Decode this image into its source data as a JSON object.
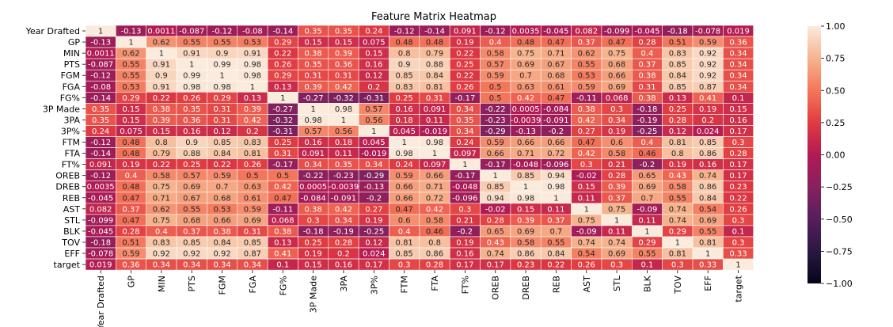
{
  "chart_data": {
    "type": "heatmap",
    "title": "Feature Matrix Heatmap",
    "xlabel": "",
    "ylabel": "",
    "labels": [
      "Year Drafted",
      "GP",
      "MIN",
      "PTS",
      "FGM",
      "FGA",
      "FG%",
      "3P Made",
      "3PA",
      "3P%",
      "FTM",
      "FTA",
      "FT%",
      "OREB",
      "DREB",
      "REB",
      "AST",
      "STL",
      "BLK",
      "TOV",
      "EFF",
      "target"
    ],
    "value_labels": [
      [
        "1",
        "-0.13",
        "0.0011",
        "-0.087",
        "-0.12",
        "-0.08",
        "-0.14",
        "0.35",
        "0.35",
        "0.24",
        "-0.12",
        "-0.14",
        "0.091",
        "-0.12",
        "0.0035",
        "-0.045",
        "0.082",
        "-0.099",
        "-0.045",
        "-0.18",
        "-0.078",
        "0.019"
      ],
      [
        "-0.13",
        "1",
        "0.62",
        "0.55",
        "0.55",
        "0.53",
        "0.29",
        "0.15",
        "0.15",
        "0.075",
        "0.48",
        "0.48",
        "0.19",
        "0.4",
        "0.48",
        "0.47",
        "0.37",
        "0.47",
        "0.28",
        "0.51",
        "0.59",
        "0.36"
      ],
      [
        "0.0011",
        "0.62",
        "1",
        "0.91",
        "0.9",
        "0.91",
        "0.22",
        "0.38",
        "0.39",
        "0.15",
        "0.8",
        "0.79",
        "0.22",
        "0.58",
        "0.75",
        "0.71",
        "0.62",
        "0.75",
        "0.4",
        "0.83",
        "0.92",
        "0.34"
      ],
      [
        "-0.087",
        "0.55",
        "0.91",
        "1",
        "0.99",
        "0.98",
        "0.26",
        "0.35",
        "0.36",
        "0.16",
        "0.9",
        "0.88",
        "0.25",
        "0.57",
        "0.69",
        "0.67",
        "0.55",
        "0.68",
        "0.37",
        "0.85",
        "0.92",
        "0.34"
      ],
      [
        "-0.12",
        "0.55",
        "0.9",
        "0.99",
        "1",
        "0.98",
        "0.29",
        "0.31",
        "0.31",
        "0.12",
        "0.85",
        "0.84",
        "0.22",
        "0.59",
        "0.7",
        "0.68",
        "0.53",
        "0.66",
        "0.38",
        "0.84",
        "0.92",
        "0.34"
      ],
      [
        "-0.08",
        "0.53",
        "0.91",
        "0.98",
        "0.98",
        "1",
        "0.13",
        "0.39",
        "0.42",
        "0.2",
        "0.83",
        "0.81",
        "0.26",
        "0.5",
        "0.63",
        "0.61",
        "0.59",
        "0.69",
        "0.31",
        "0.85",
        "0.87",
        "0.34"
      ],
      [
        "-0.14",
        "0.29",
        "0.22",
        "0.26",
        "0.29",
        "0.13",
        "1",
        "-0.27",
        "-0.32",
        "-0.31",
        "0.25",
        "0.31",
        "-0.17",
        "0.5",
        "0.42",
        "0.47",
        "-0.11",
        "0.068",
        "0.38",
        "0.13",
        "0.41",
        "0.1"
      ],
      [
        "0.35",
        "0.15",
        "0.38",
        "0.35",
        "0.31",
        "0.39",
        "-0.27",
        "1",
        "0.98",
        "0.57",
        "0.16",
        "0.091",
        "0.34",
        "-0.22",
        "0.0005",
        "-0.084",
        "0.38",
        "0.3",
        "-0.18",
        "0.25",
        "0.19",
        "0.15"
      ],
      [
        "0.35",
        "0.15",
        "0.39",
        "0.36",
        "0.31",
        "0.42",
        "-0.32",
        "0.98",
        "1",
        "0.56",
        "0.18",
        "0.11",
        "0.35",
        "-0.23",
        "-0.0039",
        "-0.091",
        "0.42",
        "0.34",
        "-0.19",
        "0.28",
        "0.2",
        "0.16"
      ],
      [
        "0.24",
        "0.075",
        "0.15",
        "0.16",
        "0.12",
        "0.2",
        "-0.31",
        "0.57",
        "0.56",
        "1",
        "0.045",
        "-0.019",
        "0.34",
        "-0.29",
        "-0.13",
        "-0.2",
        "0.27",
        "0.19",
        "-0.25",
        "0.12",
        "0.024",
        "0.17"
      ],
      [
        "-0.12",
        "0.48",
        "0.8",
        "0.9",
        "0.85",
        "0.83",
        "0.25",
        "0.16",
        "0.18",
        "0.045",
        "1",
        "0.98",
        "0.24",
        "0.59",
        "0.66",
        "0.66",
        "0.47",
        "0.6",
        "0.4",
        "0.81",
        "0.85",
        "0.3"
      ],
      [
        "-0.14",
        "0.48",
        "0.79",
        "0.88",
        "0.84",
        "0.81",
        "0.31",
        "0.091",
        "0.11",
        "-0.019",
        "0.98",
        "1",
        "0.097",
        "0.66",
        "0.71",
        "0.72",
        "0.42",
        "0.58",
        "0.46",
        "0.8",
        "0.86",
        "0.28"
      ],
      [
        "0.091",
        "0.19",
        "0.22",
        "0.25",
        "0.22",
        "0.26",
        "-0.17",
        "0.34",
        "0.35",
        "0.34",
        "0.24",
        "0.097",
        "1",
        "-0.17",
        "-0.048",
        "-0.096",
        "0.3",
        "0.21",
        "-0.2",
        "0.19",
        "0.16",
        "0.17"
      ],
      [
        "-0.12",
        "0.4",
        "0.58",
        "0.57",
        "0.59",
        "0.5",
        "0.5",
        "-0.22",
        "-0.23",
        "-0.29",
        "0.59",
        "0.66",
        "-0.17",
        "1",
        "0.85",
        "0.94",
        "-0.02",
        "0.28",
        "0.65",
        "0.43",
        "0.74",
        "0.17"
      ],
      [
        "0.0035",
        "0.48",
        "0.75",
        "0.69",
        "0.7",
        "0.63",
        "0.42",
        "0.0005",
        "-0.0039",
        "-0.13",
        "0.66",
        "0.71",
        "-0.048",
        "0.85",
        "1",
        "0.98",
        "0.15",
        "0.39",
        "0.69",
        "0.58",
        "0.86",
        "0.23"
      ],
      [
        "-0.045",
        "0.47",
        "0.71",
        "0.67",
        "0.68",
        "0.61",
        "0.47",
        "-0.084",
        "-0.091",
        "-0.2",
        "0.66",
        "0.72",
        "-0.096",
        "0.94",
        "0.98",
        "1",
        "0.11",
        "0.37",
        "0.7",
        "0.55",
        "0.84",
        "0.22"
      ],
      [
        "0.082",
        "0.37",
        "0.62",
        "0.55",
        "0.53",
        "0.59",
        "-0.11",
        "0.38",
        "0.42",
        "0.27",
        "0.47",
        "0.42",
        "0.3",
        "-0.02",
        "0.15",
        "0.11",
        "1",
        "0.75",
        "-0.09",
        "0.74",
        "0.54",
        "0.26"
      ],
      [
        "-0.099",
        "0.47",
        "0.75",
        "0.68",
        "0.66",
        "0.69",
        "0.068",
        "0.3",
        "0.34",
        "0.19",
        "0.6",
        "0.58",
        "0.21",
        "0.28",
        "0.39",
        "0.37",
        "0.75",
        "1",
        "0.11",
        "0.74",
        "0.69",
        "0.3"
      ],
      [
        "-0.045",
        "0.28",
        "0.4",
        "0.37",
        "0.38",
        "0.31",
        "0.38",
        "-0.18",
        "-0.19",
        "-0.25",
        "0.4",
        "0.46",
        "-0.2",
        "0.65",
        "0.69",
        "0.7",
        "-0.09",
        "0.11",
        "1",
        "0.29",
        "0.55",
        "0.1"
      ],
      [
        "-0.18",
        "0.51",
        "0.83",
        "0.85",
        "0.84",
        "0.85",
        "0.13",
        "0.25",
        "0.28",
        "0.12",
        "0.81",
        "0.8",
        "0.19",
        "0.43",
        "0.58",
        "0.55",
        "0.74",
        "0.74",
        "0.29",
        "1",
        "0.81",
        "0.3"
      ],
      [
        "-0.078",
        "0.59",
        "0.92",
        "0.92",
        "0.92",
        "0.87",
        "0.41",
        "0.19",
        "0.2",
        "0.024",
        "0.85",
        "0.86",
        "0.16",
        "0.74",
        "0.86",
        "0.84",
        "0.54",
        "0.69",
        "0.55",
        "0.81",
        "1",
        "0.33"
      ],
      [
        "0.019",
        "0.36",
        "0.34",
        "0.34",
        "0.34",
        "0.34",
        "0.1",
        "0.15",
        "0.16",
        "0.17",
        "0.3",
        "0.28",
        "0.17",
        "0.17",
        "0.23",
        "0.22",
        "0.26",
        "0.3",
        "0.1",
        "0.3",
        "0.33",
        "1"
      ]
    ],
    "colorbar": {
      "range": [
        -1.0,
        1.0
      ],
      "ticks": [
        "1.00",
        "0.75",
        "0.50",
        "0.25",
        "0.00",
        "−0.25",
        "−0.50",
        "−0.75",
        "−1.00"
      ],
      "colormap": "rocket"
    },
    "grid": true,
    "legend": "colorbar-right"
  }
}
